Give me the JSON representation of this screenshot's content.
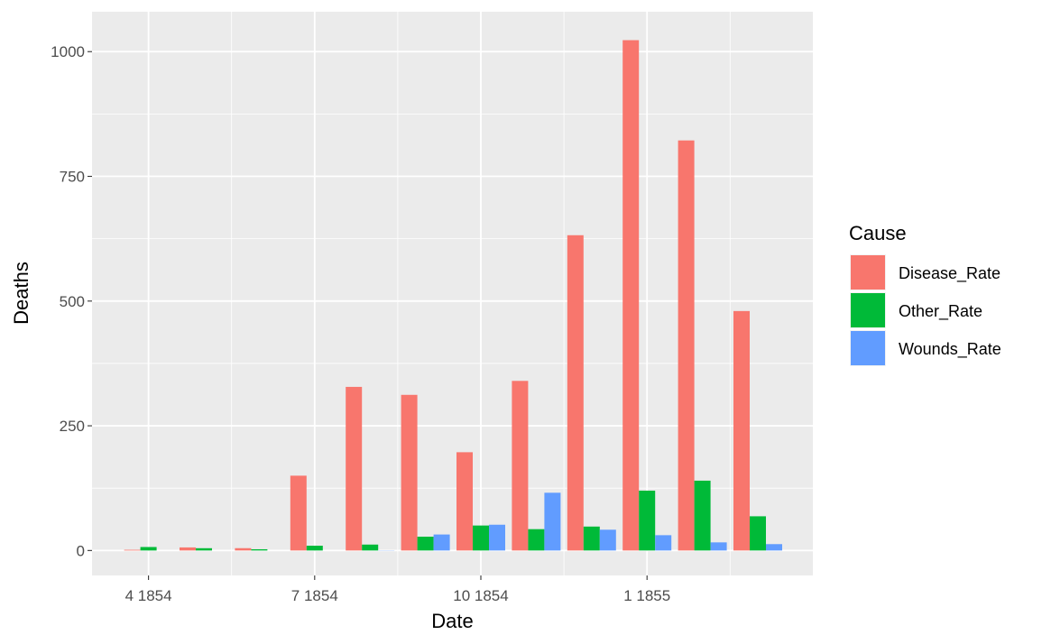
{
  "chart_data": {
    "type": "bar",
    "xlabel": "Date",
    "ylabel": "Deaths",
    "ylim": [
      -50,
      1080
    ],
    "y_ticks": [
      0,
      250,
      500,
      750,
      1000
    ],
    "x_tick_labels": [
      "4 1854",
      "7 1854",
      "10 1854",
      "1 1855"
    ],
    "categories": [
      "4 1854",
      "5 1854",
      "6 1854",
      "7 1854",
      "8 1854",
      "9 1854",
      "10 1854",
      "11 1854",
      "12 1854",
      "1 1855",
      "2 1855",
      "3 1855"
    ],
    "grid": true,
    "legend": {
      "title": "Cause",
      "placement": "right"
    },
    "series": [
      {
        "name": "Disease_Rate",
        "color": "#F8766D",
        "values": [
          1.4,
          6.2,
          4.7,
          150,
          328,
          312,
          197,
          340,
          632,
          1023,
          822,
          480
        ]
      },
      {
        "name": "Other_Rate",
        "color": "#00BA38",
        "values": [
          7.0,
          4.6,
          2.5,
          9.6,
          11.9,
          27.7,
          50.1,
          42.8,
          48.0,
          120,
          140,
          68.6
        ]
      },
      {
        "name": "Wounds_Rate",
        "color": "#619CFF",
        "values": [
          0,
          0,
          0,
          0,
          0.4,
          32.1,
          51.7,
          115.8,
          41.7,
          30.7,
          16.3,
          12.8
        ]
      }
    ]
  }
}
